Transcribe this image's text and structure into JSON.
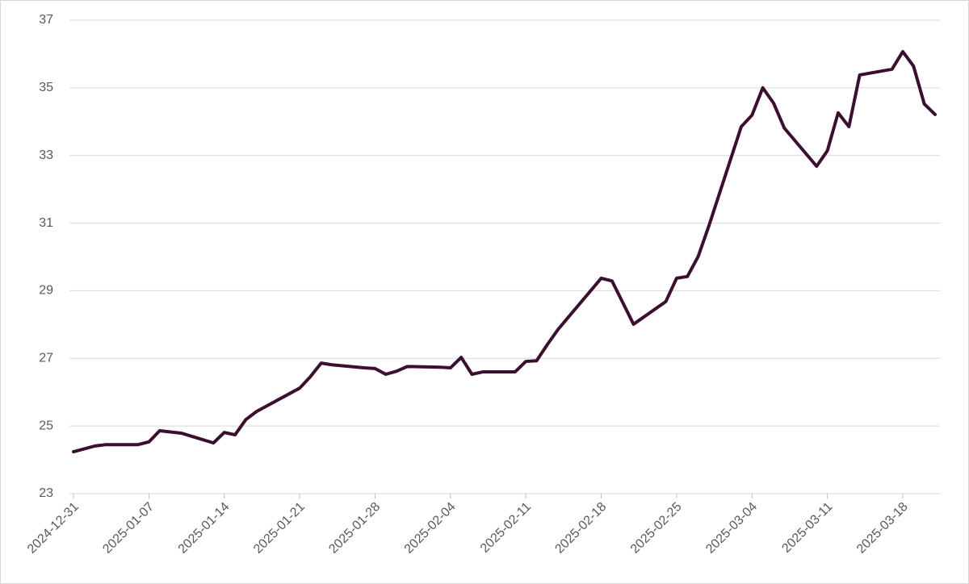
{
  "chart_data": {
    "type": "line",
    "x": [
      "2024-12-31",
      "2025-01-02",
      "2025-01-03",
      "2025-01-06",
      "2025-01-07",
      "2025-01-08",
      "2025-01-10",
      "2025-01-13",
      "2025-01-14",
      "2025-01-15",
      "2025-01-16",
      "2025-01-17",
      "2025-01-21",
      "2025-01-22",
      "2025-01-23",
      "2025-01-24",
      "2025-01-27",
      "2025-01-28",
      "2025-01-29",
      "2025-01-30",
      "2025-01-31",
      "2025-02-03",
      "2025-02-04",
      "2025-02-05",
      "2025-02-06",
      "2025-02-07",
      "2025-02-10",
      "2025-02-11",
      "2025-02-12",
      "2025-02-13",
      "2025-02-14",
      "2025-02-18",
      "2025-02-19",
      "2025-02-21",
      "2025-02-24",
      "2025-02-25",
      "2025-02-26",
      "2025-02-27",
      "2025-02-28",
      "2025-03-03",
      "2025-03-04",
      "2025-03-05",
      "2025-03-06",
      "2025-03-07",
      "2025-03-10",
      "2025-03-11",
      "2025-03-12",
      "2025-03-13",
      "2025-03-14",
      "2025-03-17",
      "2025-03-18",
      "2025-03-19",
      "2025-03-20",
      "2025-03-21"
    ],
    "series": [
      {
        "color": "#3a0f2f",
        "values": [
          24.24,
          24.41,
          24.45,
          24.45,
          24.53,
          24.86,
          24.79,
          24.5,
          24.81,
          24.74,
          25.19,
          25.43,
          26.12,
          26.46,
          26.86,
          26.81,
          26.72,
          26.7,
          26.53,
          26.62,
          26.76,
          26.74,
          26.72,
          27.03,
          26.53,
          26.6,
          26.6,
          26.91,
          26.93,
          27.41,
          27.86,
          29.37,
          29.29,
          28.01,
          28.68,
          29.37,
          29.42,
          30.01,
          30.92,
          33.85,
          34.19,
          35.0,
          34.55,
          33.81,
          32.68,
          33.14,
          34.26,
          33.85,
          35.38,
          35.55,
          36.07,
          35.64,
          34.52,
          34.21
        ]
      }
    ],
    "xlim": [
      "2024-12-31",
      "2025-03-21"
    ],
    "xticks": [
      "2024-12-31",
      "2025-01-07",
      "2025-01-14",
      "2025-01-21",
      "2025-01-28",
      "2025-02-04",
      "2025-02-11",
      "2025-02-18",
      "2025-02-25",
      "2025-03-04",
      "2025-03-11",
      "2025-03-18"
    ],
    "ylim": [
      23,
      37
    ],
    "yticks": [
      23,
      25,
      27,
      29,
      31,
      33,
      35,
      37
    ],
    "grid": true
  }
}
